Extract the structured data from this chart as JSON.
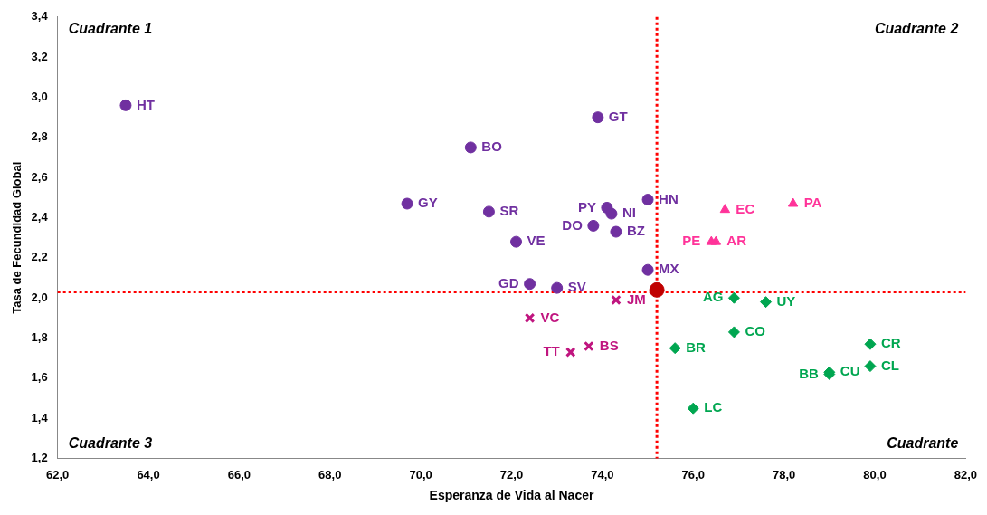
{
  "chart_data": {
    "type": "scatter",
    "xlabel": "Esperanza de Vida al Nacer",
    "ylabel": "Tasa de Fecundidad Global",
    "xlim": [
      62,
      82
    ],
    "xticks": [
      {
        "value": 62,
        "label": "62,0"
      },
      {
        "value": 64,
        "label": "64,0"
      },
      {
        "value": 66,
        "label": "66,0"
      },
      {
        "value": 68,
        "label": "68,0"
      },
      {
        "value": 70,
        "label": "70,0"
      },
      {
        "value": 72,
        "label": "72,0"
      },
      {
        "value": 74,
        "label": "74,0"
      },
      {
        "value": 76,
        "label": "76,0"
      },
      {
        "value": 78,
        "label": "78,0"
      },
      {
        "value": 80,
        "label": "80,0"
      },
      {
        "value": 82,
        "label": "82,0"
      }
    ],
    "ylim": [
      1.2,
      3.4
    ],
    "yticks": [
      {
        "value": 1.2,
        "label": "1,2"
      },
      {
        "value": 1.4,
        "label": "1,4"
      },
      {
        "value": 1.6,
        "label": "1,6"
      },
      {
        "value": 1.8,
        "label": "1,8"
      },
      {
        "value": 2.0,
        "label": "2,0"
      },
      {
        "value": 2.2,
        "label": "2,2"
      },
      {
        "value": 2.4,
        "label": "2,4"
      },
      {
        "value": 2.6,
        "label": "2,6"
      },
      {
        "value": 2.8,
        "label": "2,8"
      },
      {
        "value": 3.0,
        "label": "3,0"
      },
      {
        "value": 3.2,
        "label": "3,2"
      },
      {
        "value": 3.4,
        "label": "3,4"
      }
    ],
    "grid": false,
    "legend": false,
    "series": [
      {
        "color": "#7030a0",
        "marker": "circle",
        "x": [
          63.5,
          73.9,
          71.1,
          69.7,
          71.5,
          74.1,
          74.2,
          75.0,
          73.8,
          74.3,
          72.1,
          75.0,
          72.4,
          73.0
        ],
        "values": [
          2.96,
          2.9,
          2.75,
          2.47,
          2.43,
          2.45,
          2.42,
          2.49,
          2.36,
          2.33,
          2.28,
          2.14,
          2.07,
          2.05
        ],
        "value_labels": [
          "HT",
          "GT",
          "BO",
          "GY",
          "SR",
          "PY",
          "NI",
          "HN",
          "DO",
          "BZ",
          "VE",
          "MX",
          "GD",
          "SV"
        ]
      },
      {
        "color": "#c0157f",
        "marker": "cross",
        "x": [
          74.3,
          72.4,
          73.7,
          73.3
        ],
        "values": [
          1.99,
          1.9,
          1.76,
          1.73
        ],
        "value_labels": [
          "JM",
          "VC",
          "BS",
          "TT"
        ]
      },
      {
        "color": "#ff3399",
        "marker": "triangle",
        "x": [
          76.7,
          78.2,
          76.4,
          76.5
        ],
        "values": [
          2.44,
          2.47,
          2.28,
          2.28
        ],
        "value_labels": [
          "EC",
          "PA",
          "PE",
          "AR"
        ]
      },
      {
        "color": "#00a650",
        "marker": "diamond",
        "x": [
          76.9,
          77.6,
          76.9,
          75.6,
          79.9,
          79.9,
          79.0,
          79.0,
          76.0
        ],
        "values": [
          2.0,
          1.98,
          1.83,
          1.75,
          1.77,
          1.66,
          1.63,
          1.62,
          1.45
        ],
        "value_labels": [
          "AG",
          "UY",
          "CO",
          "BR",
          "CR",
          "CL",
          "CU",
          "BB",
          "LC"
        ]
      },
      {
        "color": "#c00000",
        "marker": "circle",
        "x": [
          75.2
        ],
        "values": [
          2.04
        ]
      }
    ],
    "ref_lines": [
      {
        "axis": "x",
        "value": 75.2,
        "color": "#ff0000",
        "line_style": "dotted"
      },
      {
        "axis": "y",
        "value": 2.03,
        "color": "#ff0000",
        "line_style": "dotted"
      }
    ],
    "annotations": [
      "Cuadrante 1",
      "Cuadrante 2",
      "Cuadrante 3",
      "Cuadrante"
    ]
  }
}
